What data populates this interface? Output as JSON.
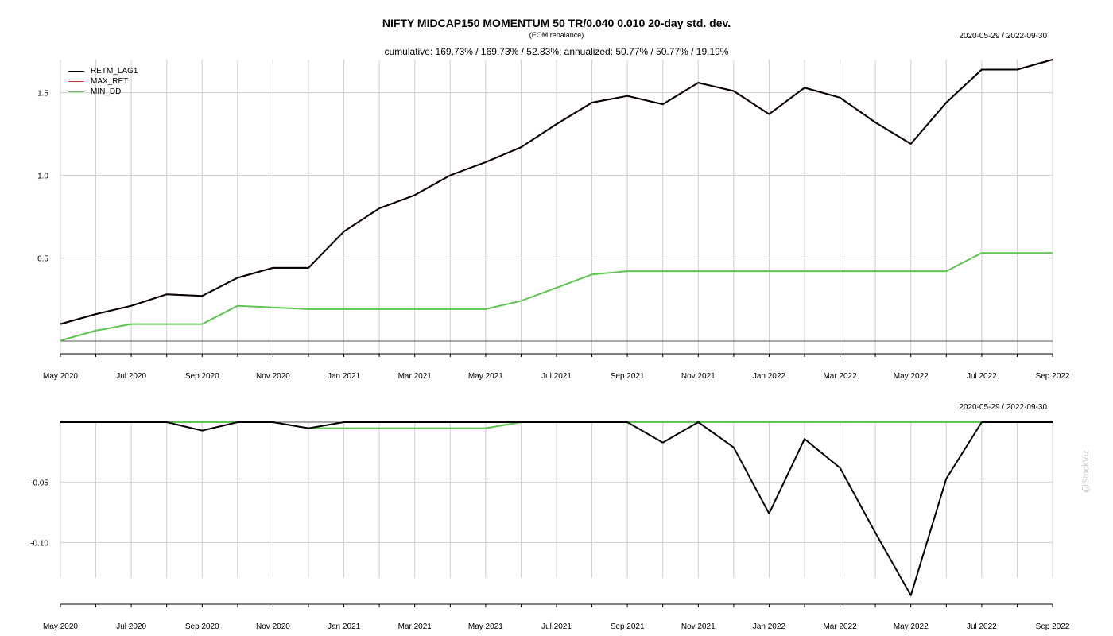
{
  "header": {
    "title": "NIFTY MIDCAP150 MOMENTUM 50 TR/0.040 0.010 20-day std. dev.",
    "subtitle": "(EOM rebalance)",
    "stats": "cumulative: 169.73% / 169.73% / 52.83%; annualized: 50.77% / 50.77% / 19.19%",
    "range_top": "2020-05-29 / 2022-09-30",
    "range_bottom": "2020-05-29 / 2022-09-30"
  },
  "watermark": "@StockViz",
  "legend": [
    {
      "label": "RETM_LAG1",
      "color": "#000000"
    },
    {
      "label": "MAX_RET",
      "color": "#c0392b"
    },
    {
      "label": "MIN_DD",
      "color": "#5cc650"
    }
  ],
  "chart_data": [
    {
      "type": "line",
      "title": "NIFTY MIDCAP150 MOMENTUM 50 TR/0.040 0.010 20-day std. dev.",
      "x": [
        "2020-05",
        "2020-06",
        "2020-07",
        "2020-08",
        "2020-09",
        "2020-10",
        "2020-11",
        "2020-12",
        "2021-01",
        "2021-02",
        "2021-03",
        "2021-04",
        "2021-05",
        "2021-06",
        "2021-07",
        "2021-08",
        "2021-09",
        "2021-10",
        "2021-11",
        "2021-12",
        "2022-01",
        "2022-02",
        "2022-03",
        "2022-04",
        "2022-05",
        "2022-06",
        "2022-07",
        "2022-08",
        "2022-09"
      ],
      "x_tick_labels": [
        "May 2020",
        "Jul 2020",
        "Sep 2020",
        "Nov 2020",
        "Jan 2021",
        "Mar 2021",
        "May 2021",
        "Jul 2021",
        "Sep 2021",
        "Nov 2021",
        "Jan 2022",
        "Mar 2022",
        "May 2022",
        "Jul 2022",
        "Sep 2022"
      ],
      "y_ticks": [
        0.5,
        1.0,
        1.5
      ],
      "y_tick_labels": [
        "0.5",
        "1.0",
        "1.5"
      ],
      "ylim": [
        -0.08,
        1.7
      ],
      "grid": true,
      "legend_position": "top-left",
      "series": [
        {
          "name": "RETM_LAG1",
          "color": "#000000",
          "values": [
            0.1,
            0.16,
            0.21,
            0.28,
            0.27,
            0.38,
            0.44,
            0.44,
            0.66,
            0.8,
            0.88,
            1.0,
            1.08,
            1.17,
            1.31,
            1.44,
            1.48,
            1.43,
            1.56,
            1.51,
            1.37,
            1.53,
            1.47,
            1.32,
            1.19,
            1.44,
            1.64,
            1.64,
            1.7
          ]
        },
        {
          "name": "MAX_RET",
          "color": "#c0392b",
          "values": [
            0.1,
            0.16,
            0.21,
            0.28,
            0.27,
            0.38,
            0.44,
            0.44,
            0.66,
            0.8,
            0.88,
            1.0,
            1.08,
            1.17,
            1.31,
            1.44,
            1.48,
            1.43,
            1.56,
            1.51,
            1.37,
            1.53,
            1.47,
            1.32,
            1.19,
            1.44,
            1.64,
            1.64,
            1.7
          ]
        },
        {
          "name": "MIN_DD",
          "color": "#5cc650",
          "values": [
            0.0,
            0.06,
            0.1,
            0.1,
            0.1,
            0.21,
            0.2,
            0.19,
            0.19,
            0.19,
            0.19,
            0.19,
            0.19,
            0.24,
            0.32,
            0.4,
            0.42,
            0.42,
            0.42,
            0.42,
            0.42,
            0.42,
            0.42,
            0.42,
            0.42,
            0.42,
            0.53,
            0.53,
            0.53
          ]
        }
      ]
    },
    {
      "type": "line",
      "x": [
        "2020-05",
        "2020-06",
        "2020-07",
        "2020-08",
        "2020-09",
        "2020-10",
        "2020-11",
        "2020-12",
        "2021-01",
        "2021-02",
        "2021-03",
        "2021-04",
        "2021-05",
        "2021-06",
        "2021-07",
        "2021-08",
        "2021-09",
        "2021-10",
        "2021-11",
        "2021-12",
        "2022-01",
        "2022-02",
        "2022-03",
        "2022-04",
        "2022-05",
        "2022-06",
        "2022-07",
        "2022-08",
        "2022-09"
      ],
      "x_tick_labels": [
        "May 2020",
        "Jul 2020",
        "Sep 2020",
        "Nov 2020",
        "Jan 2021",
        "Mar 2021",
        "May 2021",
        "Jul 2021",
        "Sep 2021",
        "Nov 2021",
        "Jan 2022",
        "Mar 2022",
        "May 2022",
        "Jul 2022",
        "Sep 2022"
      ],
      "y_ticks": [
        -0.1,
        -0.05
      ],
      "y_tick_labels": [
        "-0.10",
        "-0.05"
      ],
      "ylim": [
        -0.15,
        0.0
      ],
      "grid": true,
      "series": [
        {
          "name": "RETM_LAG1",
          "color": "#000000",
          "values": [
            0,
            0,
            0,
            0,
            -0.007,
            0,
            0,
            -0.005,
            0,
            0,
            0,
            0,
            0,
            0,
            0,
            0,
            0,
            -0.017,
            0,
            -0.021,
            -0.076,
            -0.014,
            -0.038,
            -0.092,
            -0.144,
            -0.047,
            0,
            0,
            0
          ]
        },
        {
          "name": "MIN_DD",
          "color": "#5cc650",
          "values": [
            0,
            0,
            0,
            0,
            0,
            0,
            0,
            -0.005,
            -0.005,
            -0.005,
            -0.005,
            -0.005,
            -0.005,
            0,
            0,
            0,
            0,
            0,
            0,
            0,
            0,
            0,
            0,
            0,
            0,
            0,
            0,
            0,
            0
          ]
        }
      ]
    }
  ]
}
